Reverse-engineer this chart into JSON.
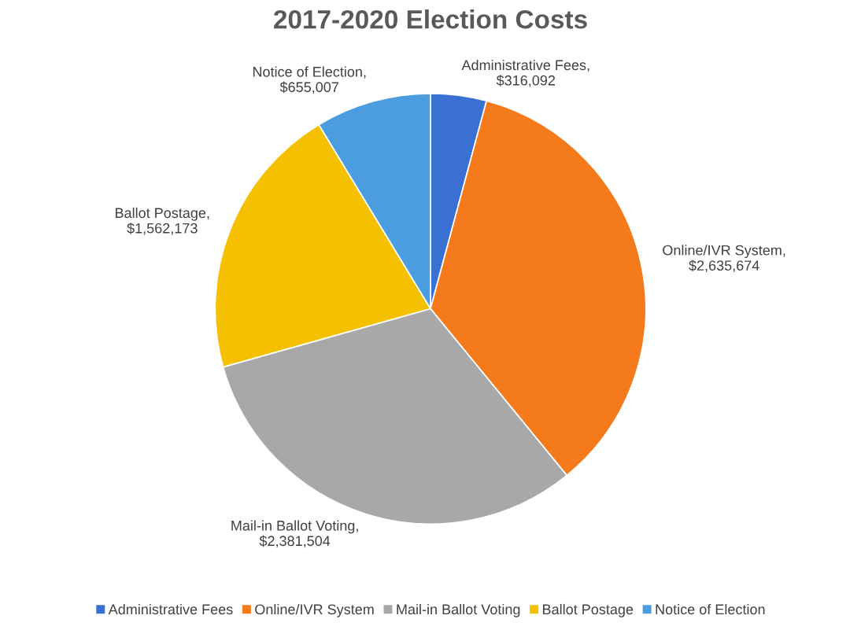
{
  "chart_data": {
    "type": "pie",
    "title": "2017-2020 Election Costs",
    "categories": [
      "Administrative Fees",
      "Online/IVR System",
      "Mail-in Ballot Voting",
      "Ballot Postage",
      "Notice of Election"
    ],
    "values": [
      316092,
      2635674,
      2381504,
      1562173,
      655007
    ],
    "value_labels": [
      "Administrative Fees,\n$316,092",
      "Online/IVR System,\n$2,635,674",
      "Mail-in Ballot Voting,\n$2,381,504",
      "Ballot Postage,\n$1,562,173",
      "Notice of Election,\n$655,007"
    ],
    "colors": [
      "#3a6fd3",
      "#f47a1c",
      "#a8a8a8",
      "#f5c000",
      "#4b9de0"
    ],
    "legend": "bottom"
  }
}
